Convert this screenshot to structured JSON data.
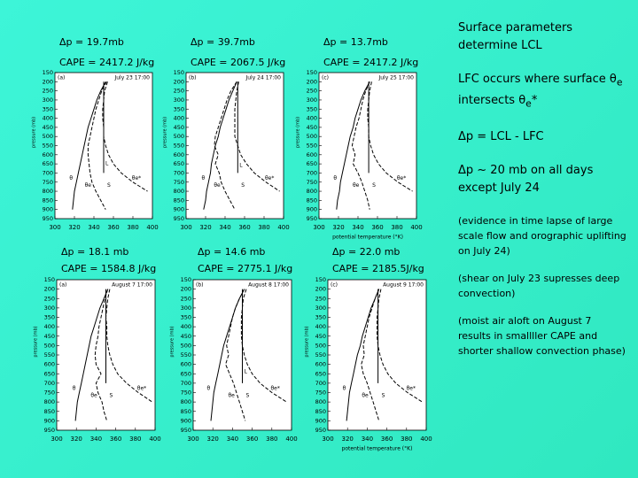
{
  "chart_data": [
    {
      "type": "line",
      "title": "Δp = 19.7mb",
      "subtitle": "CAPE = 2417.2 J/kg",
      "panel": "(a)",
      "date": "July 23 17:00",
      "ylabel": "pressure (mb)",
      "xlim": [
        300,
        400
      ],
      "xticks": [
        300,
        320,
        340,
        360,
        380,
        400
      ],
      "ylim": [
        950,
        150
      ],
      "yticks": [
        150,
        200,
        250,
        300,
        350,
        400,
        450,
        500,
        550,
        600,
        650,
        700,
        750,
        800,
        850,
        900,
        950
      ],
      "y": [
        200,
        250,
        300,
        350,
        400,
        450,
        500,
        550,
        600,
        650,
        700,
        750,
        800,
        850,
        900
      ],
      "series": [
        {
          "name": "θ",
          "dash": false,
          "values": [
            352,
            347,
            343,
            340,
            337,
            334,
            332,
            330,
            328,
            326,
            324,
            322,
            320,
            319,
            318
          ]
        },
        {
          "name": "θe",
          "dash": true,
          "values": [
            353,
            348,
            345,
            342,
            340,
            338,
            336,
            334,
            334,
            335,
            336,
            338,
            342,
            347,
            352
          ]
        },
        {
          "name": "θe*",
          "dash": true,
          "values": [
            354,
            351,
            350,
            349,
            349,
            350,
            350,
            352,
            355,
            360,
            368,
            380,
            395,
            null,
            null
          ]
        },
        {
          "name": "S",
          "dash": false,
          "values": [
            350,
            350,
            350,
            350,
            350,
            350,
            350,
            350,
            350,
            350,
            350,
            null,
            null,
            null,
            null
          ]
        }
      ],
      "annotations": [
        {
          "text": "L",
          "x": 350,
          "y": 650
        }
      ]
    },
    {
      "type": "line",
      "title": "Δp = 39.7mb",
      "subtitle": "CAPE = 2067.5 J/kg",
      "panel": "(b)",
      "date": "July 24 17:00",
      "ylabel": "pressure (mb)",
      "xlim": [
        300,
        400
      ],
      "xticks": [
        300,
        320,
        340,
        360,
        380,
        400
      ],
      "ylim": [
        950,
        150
      ],
      "yticks": [
        150,
        200,
        250,
        300,
        350,
        400,
        450,
        500,
        550,
        600,
        650,
        700,
        750,
        800,
        850,
        900,
        950
      ],
      "y": [
        200,
        250,
        300,
        350,
        400,
        450,
        500,
        550,
        600,
        650,
        700,
        750,
        800,
        850,
        900
      ],
      "series": [
        {
          "name": "θ",
          "dash": false,
          "values": [
            352,
            348,
            344,
            341,
            338,
            335,
            333,
            330,
            328,
            326,
            325,
            323,
            321,
            320,
            318
          ]
        },
        {
          "name": "θe",
          "dash": true,
          "values": [
            352,
            346,
            342,
            339,
            336,
            333,
            330,
            329,
            333,
            330,
            334,
            336,
            340,
            345,
            350
          ]
        },
        {
          "name": "θe*",
          "dash": true,
          "values": [
            354,
            352,
            351,
            350,
            350,
            350,
            350,
            353,
            356,
            362,
            370,
            382,
            396,
            null,
            null
          ]
        },
        {
          "name": "S",
          "dash": false,
          "values": [
            353,
            353,
            353,
            353,
            353,
            353,
            353,
            353,
            353,
            353,
            353,
            null,
            null,
            null,
            null
          ]
        }
      ],
      "annotations": [
        {
          "text": "L",
          "x": 353,
          "y": 660
        }
      ]
    },
    {
      "type": "line",
      "title": "Δp = 13.7mb",
      "subtitle": "CAPE = 2417.2 J/kg",
      "panel": "(c)",
      "date": "July 25 17:00",
      "ylabel": "pressure (mb)",
      "xlabel": "potential temperature (°K)",
      "xlim": [
        300,
        400
      ],
      "xticks": [
        300,
        320,
        340,
        360,
        380,
        400
      ],
      "ylim": [
        950,
        150
      ],
      "yticks": [
        150,
        200,
        250,
        300,
        350,
        400,
        450,
        500,
        550,
        600,
        650,
        700,
        750,
        800,
        850,
        900,
        950
      ],
      "y": [
        200,
        250,
        300,
        350,
        400,
        450,
        500,
        550,
        600,
        650,
        700,
        750,
        800,
        850,
        900
      ],
      "series": [
        {
          "name": "θ",
          "dash": false,
          "values": [
            352,
            347,
            343,
            340,
            337,
            335,
            332,
            330,
            328,
            326,
            324,
            322,
            321,
            319,
            318
          ]
        },
        {
          "name": "θe",
          "dash": true,
          "values": [
            352,
            348,
            345,
            343,
            341,
            338,
            336,
            334,
            337,
            335,
            340,
            344,
            347,
            350,
            352
          ]
        },
        {
          "name": "θe*",
          "dash": true,
          "values": [
            354,
            352,
            351,
            350,
            350,
            351,
            351,
            353,
            356,
            361,
            369,
            381,
            396,
            null,
            null
          ]
        },
        {
          "name": "S",
          "dash": false,
          "values": [
            351,
            351,
            351,
            351,
            351,
            351,
            351,
            351,
            351,
            351,
            351,
            null,
            null,
            null,
            null
          ]
        }
      ],
      "annotations": []
    },
    {
      "type": "line",
      "title": "Δp = 18.1 mb",
      "subtitle": "CAPE = 1584.8 J/kg",
      "panel": "(a)",
      "date": "August 7  17:00",
      "ylabel": "pressure (mb)",
      "xlim": [
        300,
        400
      ],
      "xticks": [
        300,
        320,
        340,
        360,
        380,
        400
      ],
      "ylim": [
        950,
        150
      ],
      "yticks": [
        150,
        200,
        250,
        300,
        350,
        400,
        450,
        500,
        550,
        600,
        650,
        700,
        750,
        800,
        850,
        900,
        950
      ],
      "y": [
        200,
        250,
        300,
        350,
        400,
        450,
        500,
        550,
        600,
        650,
        700,
        750,
        800,
        850,
        900
      ],
      "series": [
        {
          "name": "θ",
          "dash": false,
          "values": [
            352,
            348,
            344,
            341,
            338,
            335,
            333,
            331,
            329,
            327,
            325,
            323,
            321,
            320,
            319
          ]
        },
        {
          "name": "θe",
          "dash": true,
          "values": [
            352,
            349,
            347,
            345,
            343,
            342,
            340,
            339,
            340,
            345,
            340,
            342,
            346,
            348,
            351
          ]
        },
        {
          "name": "θe*",
          "dash": true,
          "values": [
            354,
            352,
            351,
            350,
            351,
            351,
            352,
            354,
            357,
            362,
            371,
            383,
            397,
            null,
            null
          ]
        },
        {
          "name": "S",
          "dash": false,
          "values": [
            350,
            350,
            350,
            350,
            350,
            350,
            350,
            350,
            350,
            350,
            350,
            null,
            null,
            null,
            null
          ]
        }
      ],
      "annotations": []
    },
    {
      "type": "line",
      "title": "Δp = 14.6 mb",
      "subtitle": "CAPE = 2775.1 J/kg",
      "panel": "(b)",
      "date": "August 8 17:00",
      "ylabel": "pressure (mb)",
      "xlim": [
        300,
        400
      ],
      "xticks": [
        300,
        320,
        340,
        360,
        380,
        400
      ],
      "ylim": [
        950,
        150
      ],
      "yticks": [
        150,
        200,
        250,
        300,
        350,
        400,
        450,
        500,
        550,
        600,
        650,
        700,
        750,
        800,
        850,
        900,
        950
      ],
      "y": [
        200,
        250,
        300,
        350,
        400,
        450,
        500,
        550,
        600,
        650,
        700,
        750,
        800,
        850,
        900
      ],
      "series": [
        {
          "name": "θ",
          "dash": false,
          "values": [
            352,
            347,
            343,
            340,
            337,
            334,
            331,
            329,
            327,
            325,
            323,
            321,
            320,
            319,
            318
          ]
        },
        {
          "name": "θe",
          "dash": true,
          "values": [
            352,
            347,
            343,
            340,
            338,
            336,
            334,
            336,
            333,
            337,
            341,
            344,
            347,
            350,
            353
          ]
        },
        {
          "name": "θe*",
          "dash": true,
          "values": [
            354,
            351,
            350,
            349,
            349,
            349,
            350,
            352,
            355,
            360,
            368,
            380,
            395,
            null,
            null
          ]
        },
        {
          "name": "S",
          "dash": false,
          "values": [
            350,
            350,
            350,
            350,
            350,
            350,
            350,
            350,
            350,
            350,
            350,
            null,
            null,
            null,
            null
          ]
        }
      ],
      "annotations": [
        {
          "text": "L",
          "x": 350,
          "y": 640
        }
      ]
    },
    {
      "type": "line",
      "title": "Δp = 22.0 mb",
      "subtitle": "CAPE = 2185.5J/kg",
      "panel": "(c)",
      "date": "August 9 17:00",
      "ylabel": "pressure (mb)",
      "xlabel": "potential temperature (°K)",
      "xlim": [
        300,
        400
      ],
      "xticks": [
        300,
        320,
        340,
        360,
        380,
        400
      ],
      "ylim": [
        950,
        150
      ],
      "yticks": [
        150,
        200,
        250,
        300,
        350,
        400,
        450,
        500,
        550,
        600,
        650,
        700,
        750,
        800,
        850,
        900,
        950
      ],
      "y": [
        200,
        250,
        300,
        350,
        400,
        450,
        500,
        550,
        600,
        650,
        700,
        750,
        800,
        850,
        900
      ],
      "series": [
        {
          "name": "θ",
          "dash": false,
          "values": [
            352,
            348,
            344,
            341,
            338,
            335,
            333,
            330,
            328,
            326,
            324,
            322,
            321,
            320,
            319
          ]
        },
        {
          "name": "θe",
          "dash": true,
          "values": [
            352,
            348,
            345,
            342,
            340,
            338,
            336,
            337,
            334,
            336,
            340,
            343,
            346,
            349,
            352
          ]
        },
        {
          "name": "θe*",
          "dash": true,
          "values": [
            354,
            352,
            351,
            350,
            350,
            350,
            351,
            353,
            356,
            361,
            369,
            381,
            396,
            null,
            null
          ]
        },
        {
          "name": "S",
          "dash": false,
          "values": [
            351,
            351,
            351,
            351,
            351,
            351,
            351,
            351,
            351,
            351,
            351,
            null,
            null,
            null,
            null
          ]
        }
      ],
      "annotations": []
    }
  ],
  "notes": [
    {
      "parts": [
        {
          "text": "Surface parameters determine LCL"
        }
      ]
    },
    {
      "parts": [
        {
          "text": "LFC occurs where surface θ"
        },
        {
          "text": "e",
          "sub": true
        },
        {
          "text": " intersects θ"
        },
        {
          "text": "e",
          "sub": true
        },
        {
          "text": "*"
        }
      ]
    },
    {
      "parts": [
        {
          "text": "Δp = LCL - LFC"
        }
      ]
    },
    {
      "parts": [
        {
          "text": "Δp ~ 20 mb on all days except July 24"
        }
      ]
    },
    {
      "small": true,
      "parts": [
        {
          "text": "(evidence in time lapse of large scale flow and orographic uplifting on July 24)"
        }
      ]
    },
    {
      "small": true,
      "parts": [
        {
          "text": "(shear on July 23 supresses deep convection)"
        }
      ]
    },
    {
      "small": true,
      "parts": [
        {
          "text": "(moist air aloft on August 7 results in smallller CAPE and shorter shallow convection phase)"
        }
      ]
    }
  ]
}
